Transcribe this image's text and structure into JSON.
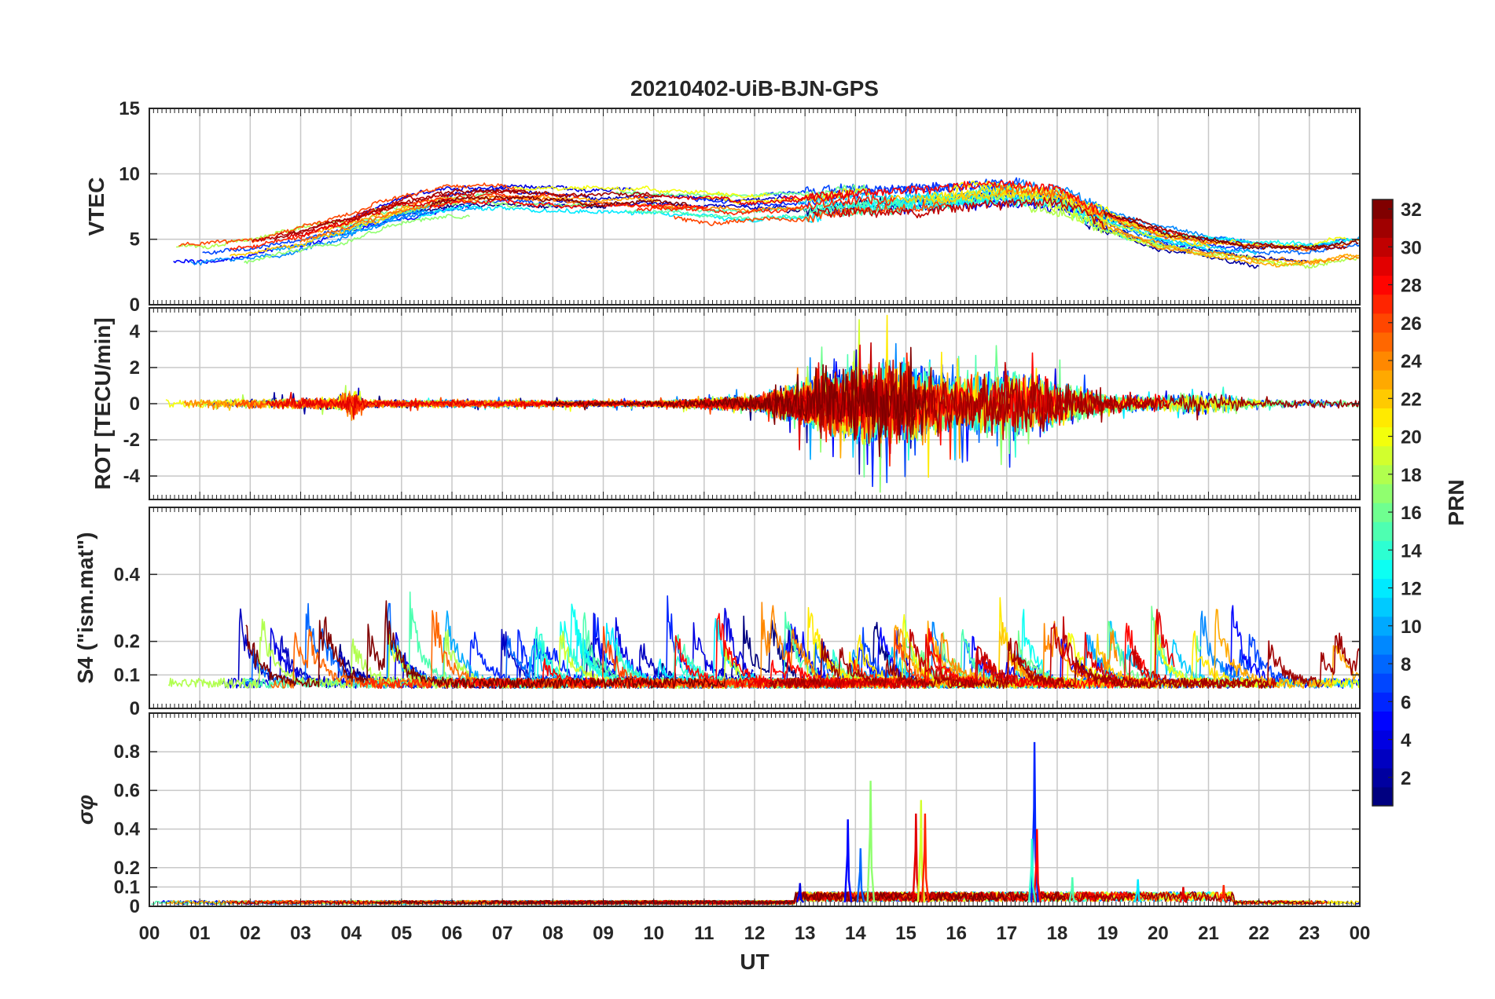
{
  "chart_data": {
    "type": "line",
    "title": "20210402-UiB-BJN-GPS",
    "xlabel": "UT",
    "x_ticks": [
      "00",
      "01",
      "02",
      "03",
      "04",
      "05",
      "06",
      "07",
      "08",
      "09",
      "10",
      "11",
      "12",
      "13",
      "14",
      "15",
      "16",
      "17",
      "18",
      "19",
      "20",
      "21",
      "22",
      "23",
      "00"
    ],
    "x_range_hours": [
      0,
      24
    ],
    "colorbar": {
      "label": "PRN",
      "range": [
        1,
        32
      ],
      "ticks": [
        "2",
        "4",
        "6",
        "8",
        "10",
        "12",
        "14",
        "16",
        "18",
        "20",
        "22",
        "24",
        "26",
        "28",
        "30",
        "32"
      ],
      "colormap": "jet"
    },
    "panels": [
      {
        "id": "vtec",
        "ylabel": "VTEC",
        "ylim": [
          0,
          15
        ],
        "y_ticks": [
          0,
          5,
          10,
          15
        ],
        "y_tick_labels": [
          "0",
          "5",
          "10",
          "15"
        ],
        "trend": [
          [
            0,
            3.8
          ],
          [
            1,
            3.8
          ],
          [
            2,
            4.2
          ],
          [
            3,
            5.0
          ],
          [
            4,
            6.0
          ],
          [
            5,
            7.3
          ],
          [
            6,
            8.0
          ],
          [
            7,
            8.2
          ],
          [
            8,
            8.0
          ],
          [
            9,
            7.8
          ],
          [
            10,
            7.8
          ],
          [
            11,
            7.5
          ],
          [
            12,
            7.4
          ],
          [
            13,
            7.6
          ],
          [
            14,
            8.0
          ],
          [
            15,
            8.1
          ],
          [
            16,
            8.3
          ],
          [
            17,
            8.6
          ],
          [
            18,
            8.3
          ],
          [
            19,
            6.6
          ],
          [
            20,
            5.3
          ],
          [
            21,
            4.6
          ],
          [
            22,
            4.2
          ],
          [
            23,
            4.0
          ],
          [
            24,
            4.6
          ]
        ],
        "noise": 0.35,
        "seed": 11
      },
      {
        "id": "rot",
        "ylabel": "ROT [TECU/min]",
        "ylim": [
          -5.3,
          5.3
        ],
        "y_ticks": [
          -4,
          -2,
          0,
          2,
          4
        ],
        "y_tick_labels": [
          "-4",
          "-2",
          "0",
          "2",
          "4"
        ],
        "activity": [
          [
            0,
            0.2
          ],
          [
            3.7,
            0.3
          ],
          [
            4.0,
            0.8
          ],
          [
            4.3,
            0.2
          ],
          [
            10,
            0.15
          ],
          [
            12,
            0.4
          ],
          [
            13,
            1.2
          ],
          [
            14,
            2.0
          ],
          [
            15,
            2.2
          ],
          [
            16,
            1.3
          ],
          [
            17,
            1.8
          ],
          [
            18,
            1.2
          ],
          [
            19,
            0.5
          ],
          [
            20,
            0.4
          ],
          [
            21,
            0.6
          ],
          [
            22,
            0.2
          ],
          [
            24,
            0.2
          ]
        ],
        "seed": 23
      },
      {
        "id": "s4",
        "ylabel": "S4 (\"ism.mat\")",
        "ylim": [
          0,
          0.6
        ],
        "y_ticks": [
          0,
          0.1,
          0.2,
          0.4
        ],
        "y_tick_labels": [
          "0",
          "0.1",
          "0.2",
          "0.4"
        ],
        "base": 0.06,
        "burst_range": [
          0.05,
          0.28
        ],
        "seed": 37
      },
      {
        "id": "sigphi",
        "ylabel": "σφ",
        "ylim": [
          0,
          1.0
        ],
        "y_ticks": [
          0,
          0.1,
          0.2,
          0.4,
          0.6,
          0.8
        ],
        "y_tick_labels": [
          "0",
          "0.1",
          "0.2",
          "0.4",
          "0.6",
          "0.8"
        ],
        "base": 0.02,
        "spikes": [
          {
            "t": 13.85,
            "value": 0.45,
            "prn": 5
          },
          {
            "t": 14.1,
            "value": 0.3,
            "prn": 8
          },
          {
            "t": 14.3,
            "value": 0.65,
            "prn": 17
          },
          {
            "t": 15.2,
            "value": 0.48,
            "prn": 29
          },
          {
            "t": 15.3,
            "value": 0.55,
            "prn": 19
          },
          {
            "t": 15.38,
            "value": 0.48,
            "prn": 27
          },
          {
            "t": 17.55,
            "value": 0.85,
            "prn": 6
          },
          {
            "t": 17.6,
            "value": 0.4,
            "prn": 28
          },
          {
            "t": 17.5,
            "value": 0.35,
            "prn": 14
          },
          {
            "t": 12.9,
            "value": 0.12,
            "prn": 4
          },
          {
            "t": 18.3,
            "value": 0.15,
            "prn": 15
          },
          {
            "t": 19.6,
            "value": 0.14,
            "prn": 12
          },
          {
            "t": 20.5,
            "value": 0.1,
            "prn": 29
          },
          {
            "t": 21.3,
            "value": 0.11,
            "prn": 27
          }
        ],
        "seed": 53
      }
    ]
  }
}
